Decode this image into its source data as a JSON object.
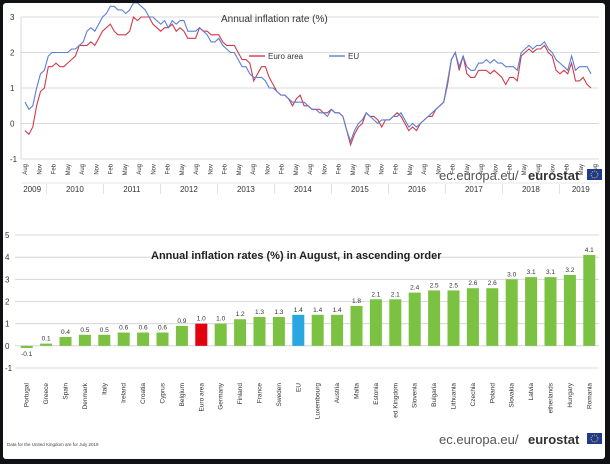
{
  "chart_data": [
    {
      "type": "line",
      "title": "Annual inflation rate (%)",
      "ylim": [
        -1,
        3
      ],
      "yticks": [
        "3",
        "2",
        "1",
        "0",
        "-1"
      ],
      "x_month_labels": [
        "Aug",
        "Nov",
        "Feb",
        "May",
        "Aug",
        "Nov",
        "Feb",
        "May",
        "Aug",
        "Nov",
        "Feb",
        "May",
        "Aug",
        "Nov",
        "Feb",
        "May",
        "Aug",
        "Nov",
        "Feb",
        "May",
        "Aug",
        "Nov",
        "Feb",
        "May",
        "Aug",
        "Nov",
        "Feb",
        "May",
        "Aug",
        "Nov",
        "Feb",
        "May",
        "Aug",
        "Nov",
        "Feb",
        "May",
        "Aug",
        "Nov",
        "Feb",
        "May",
        "Aug"
      ],
      "x_year_labels": [
        "2009",
        "2010",
        "2011",
        "2012",
        "2013",
        "2014",
        "2015",
        "2016",
        "2017",
        "2018",
        "2019"
      ],
      "legend": [
        "Euro area",
        "EU"
      ],
      "series": [
        {
          "name": "Euro area",
          "color": "#d23a4c",
          "values": [
            -0.2,
            -0.3,
            -0.1,
            0.5,
            0.9,
            1.0,
            1.6,
            1.6,
            1.7,
            1.6,
            1.6,
            1.7,
            1.8,
            1.9,
            2.2,
            2.2,
            2.2,
            2.3,
            2.2,
            2.4,
            2.6,
            2.7,
            2.8,
            2.6,
            2.5,
            2.5,
            2.5,
            2.6,
            3.0,
            2.9,
            3.0,
            3.0,
            3.0,
            2.8,
            2.7,
            2.6,
            2.7,
            2.7,
            2.8,
            2.6,
            2.7,
            2.6,
            2.4,
            2.4,
            2.4,
            2.7,
            2.6,
            2.6,
            2.5,
            2.5,
            2.5,
            2.3,
            2.2,
            2.2,
            2.2,
            2.0,
            1.8,
            1.8,
            1.7,
            1.2,
            1.4,
            1.6,
            1.6,
            1.3,
            1.1,
            0.9,
            0.8,
            0.8,
            0.7,
            0.5,
            0.7,
            0.8,
            0.5,
            0.5,
            0.4,
            0.4,
            0.4,
            0.3,
            0.3,
            0.4,
            0.3,
            0.3,
            0.2,
            -0.2,
            -0.6,
            -0.3,
            -0.1,
            0.0,
            0.3,
            0.2,
            0.2,
            0.1,
            -0.1,
            0.1,
            0.1,
            0.2,
            0.3,
            0.2,
            0.0,
            -0.2,
            -0.1,
            -0.2,
            0.0,
            0.1,
            0.2,
            0.2,
            0.4,
            0.5,
            0.6,
            1.1,
            1.8,
            2.0,
            1.5,
            1.9,
            1.4,
            1.3,
            1.3,
            1.5,
            1.5,
            1.5,
            1.4,
            1.5,
            1.4,
            1.3,
            1.1,
            1.3,
            1.3,
            1.2,
            1.9,
            2.0,
            2.1,
            2.0,
            2.1,
            2.1,
            2.2,
            2.0,
            1.9,
            1.5,
            1.4,
            1.5,
            1.4,
            1.7,
            1.2,
            1.2,
            1.3,
            1.1,
            1.0
          ]
        },
        {
          "name": "EU",
          "color": "#5b7fd6",
          "values": [
            0.6,
            0.4,
            0.5,
            1.0,
            1.4,
            1.5,
            1.9,
            2.0,
            2.0,
            2.0,
            2.0,
            2.0,
            2.1,
            2.1,
            2.2,
            2.3,
            2.6,
            2.7,
            2.6,
            2.8,
            3.0,
            3.1,
            3.3,
            3.3,
            3.2,
            3.2,
            3.1,
            3.2,
            3.4,
            3.4,
            3.3,
            3.2,
            3.0,
            3.0,
            2.9,
            2.8,
            2.9,
            2.7,
            2.9,
            2.8,
            2.9,
            2.9,
            2.6,
            2.6,
            2.6,
            2.7,
            2.6,
            2.5,
            2.3,
            2.3,
            2.4,
            2.2,
            2.1,
            2.0,
            2.0,
            1.8,
            1.6,
            1.6,
            1.4,
            1.3,
            1.3,
            1.3,
            1.2,
            1.0,
            1.0,
            0.9,
            0.8,
            0.8,
            0.7,
            0.6,
            0.6,
            0.6,
            0.6,
            0.5,
            0.4,
            0.4,
            0.3,
            0.3,
            0.2,
            0.4,
            0.3,
            0.3,
            0.2,
            -0.2,
            -0.5,
            -0.2,
            0.0,
            0.1,
            0.3,
            0.2,
            0.1,
            0.0,
            0.1,
            0.1,
            0.1,
            0.2,
            0.2,
            0.3,
            0.1,
            -0.1,
            0.0,
            -0.1,
            0.0,
            0.1,
            0.2,
            0.3,
            0.4,
            0.5,
            0.6,
            1.2,
            1.8,
            2.0,
            1.6,
            1.9,
            1.6,
            1.5,
            1.5,
            1.7,
            1.7,
            1.8,
            1.7,
            1.8,
            1.7,
            1.7,
            1.6,
            1.6,
            1.6,
            1.5,
            2.0,
            2.1,
            2.2,
            2.1,
            2.2,
            2.2,
            2.3,
            2.1,
            2.0,
            1.8,
            1.7,
            1.6,
            1.5,
            1.9,
            1.5,
            1.6,
            1.6,
            1.6,
            1.4
          ]
        }
      ],
      "source": "ec.europa.eu/",
      "brand": "eurostat"
    },
    {
      "type": "bar",
      "title": "Annual inflation rates (%) in August, in ascending order",
      "ylim": [
        -1,
        5
      ],
      "yticks": [
        "5",
        "4",
        "3",
        "2",
        "1",
        "0",
        "-1"
      ],
      "categories": [
        "Portugal",
        "Greece",
        "Spain",
        "Denmark",
        "Italy",
        "Ireland",
        "Croatia",
        "Cyprus",
        "Belgium",
        "Euro area",
        "Germany",
        "Finland",
        "France",
        "Sweden",
        "EU",
        "Luxembourg",
        "Austria",
        "Malta",
        "Estonia",
        "ed Kingdom",
        "Slovenia",
        "Bulgaria",
        "Lithuania",
        "Czechia",
        "Poland",
        "Slovakia",
        "Latvia",
        "etherlands",
        "Hungary",
        "Romania"
      ],
      "values": [
        -0.1,
        0.1,
        0.4,
        0.5,
        0.5,
        0.6,
        0.6,
        0.6,
        0.9,
        1.0,
        1.0,
        1.2,
        1.3,
        1.3,
        1.4,
        1.4,
        1.4,
        1.8,
        2.1,
        2.1,
        2.4,
        2.5,
        2.5,
        2.6,
        2.6,
        3.0,
        3.1,
        3.1,
        3.2,
        4.1
      ],
      "value_labels": [
        "-0.1",
        "0.1",
        "0.4",
        "0.5",
        "0.5",
        "0.6",
        "0.6",
        "0.6",
        "0.9",
        "1.0",
        "1.0",
        "1.2",
        "1.3",
        "1.3",
        "1.4",
        "1.4",
        "1.4",
        "1.8",
        "2.1",
        "2.1",
        "2.4",
        "2.5",
        "2.5",
        "2.6",
        "2.6",
        "3.0",
        "3.1",
        "3.1",
        "3.2",
        "4.1"
      ],
      "colors": {
        "default": "#7cc242",
        "Euro area": "#e3000f",
        "EU": "#2aa6e0"
      },
      "footnote": "Data for the United Kingdom are for July 2019",
      "source": "ec.europa.eu/",
      "brand": "eurostat"
    }
  ]
}
